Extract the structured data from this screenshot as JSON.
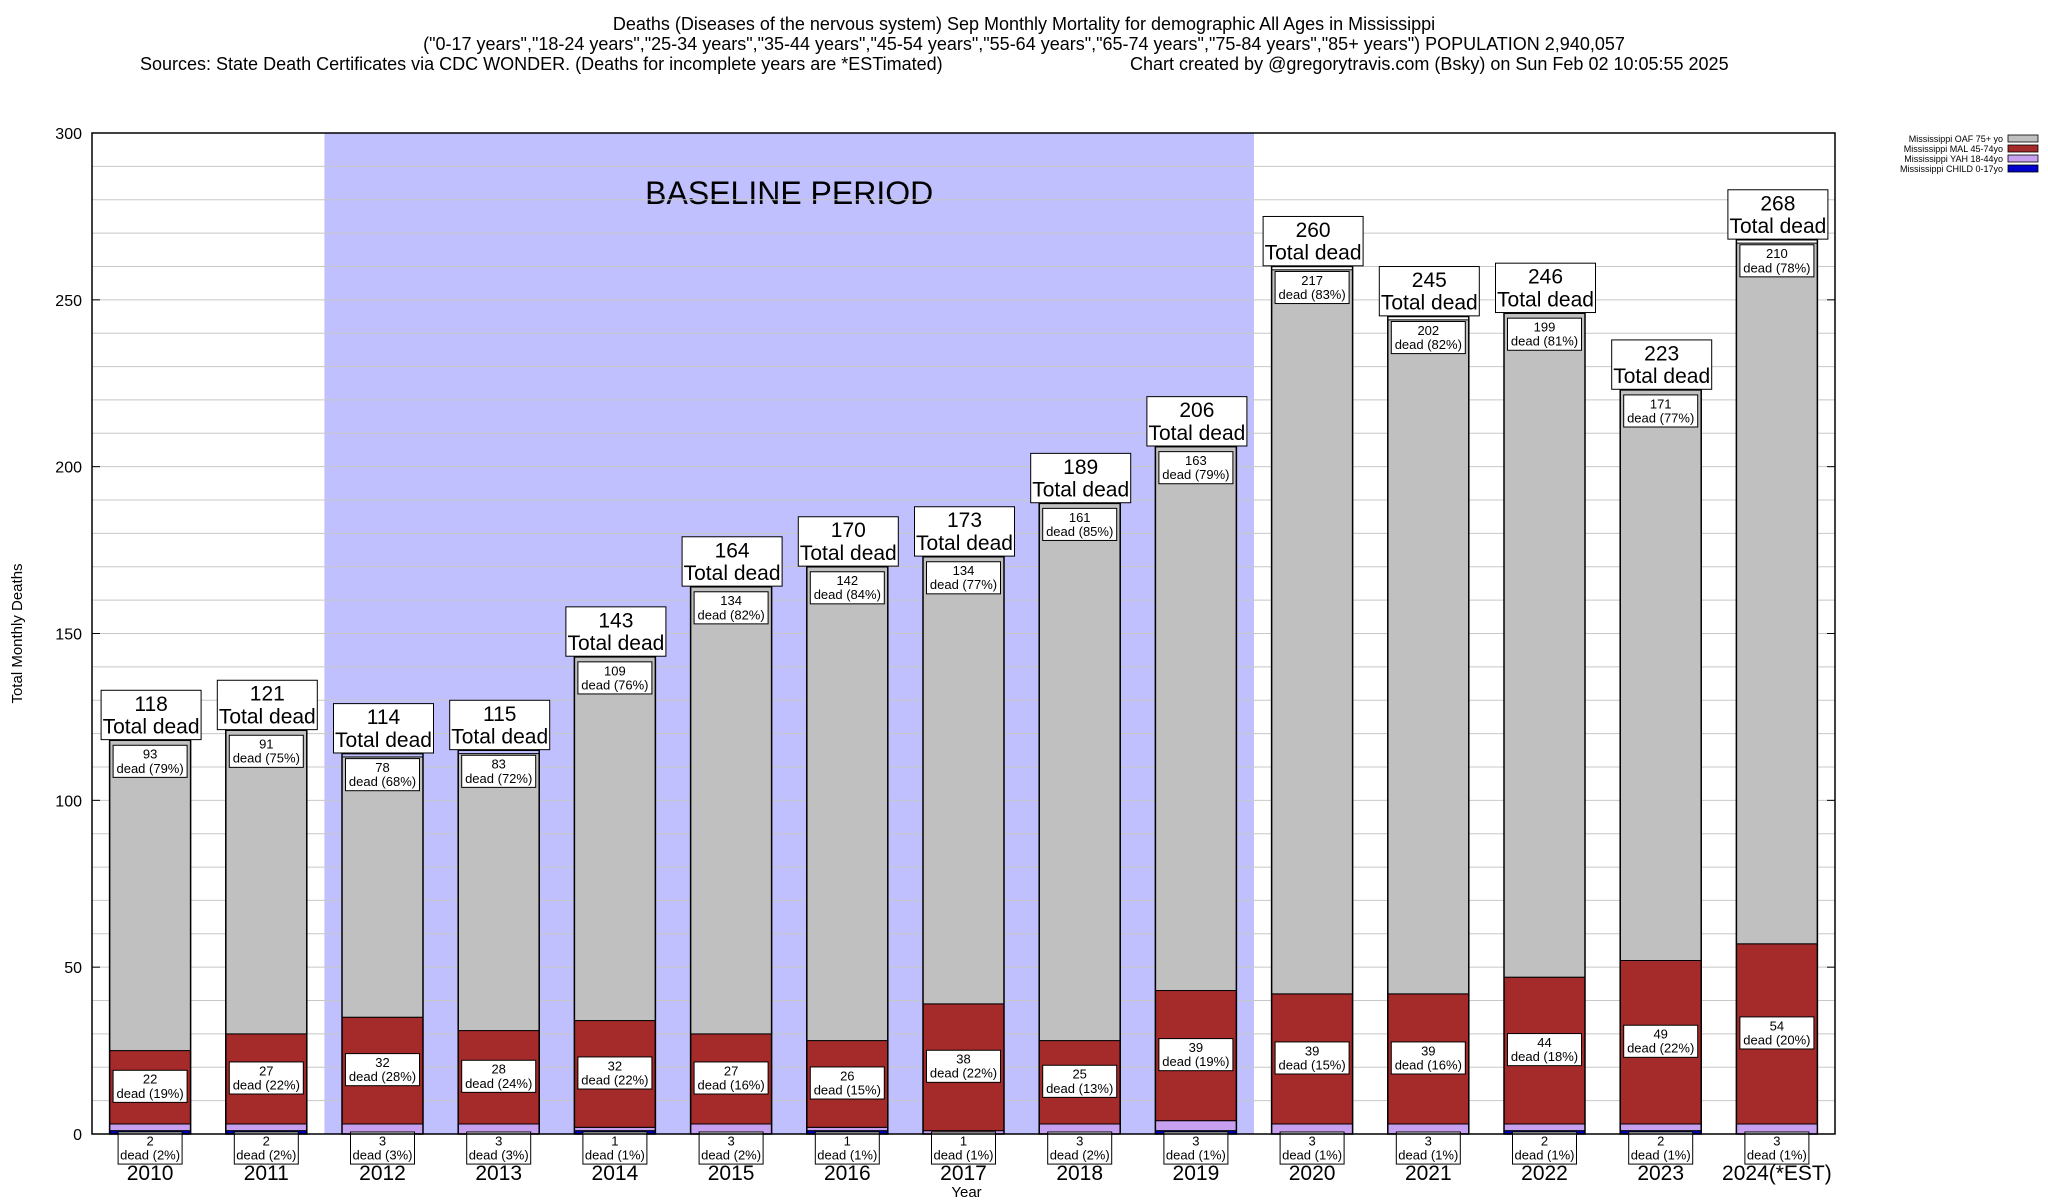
{
  "header": {
    "title": "Deaths (Diseases of the nervous system) Sep Monthly Mortality for demographic All Ages in Mississippi",
    "subtitle": "(\"0-17 years\",\"18-24 years\",\"25-34 years\",\"35-44 years\",\"45-54 years\",\"55-64 years\",\"65-74 years\",\"75-84 years\",\"85+ years\") POPULATION 2,940,057",
    "sources": "Sources: State Death Certificates via CDC WONDER. (Deaths for incomplete years are *ESTimated)",
    "credit": "Chart created by @gregorytravis.com (Bsky) on Sun Feb 02 10:05:55 2025"
  },
  "chart_data": {
    "type": "bar",
    "stacked": true,
    "xlabel": "Year",
    "ylabel": "Total Monthly Deaths",
    "ylim": [
      0,
      300
    ],
    "yticks": [
      0,
      50,
      100,
      150,
      200,
      250,
      300
    ],
    "grid": "horizontal",
    "legend_position": "top-right",
    "baseline_label": "BASELINE PERIOD",
    "baseline_range": [
      "2012",
      "2019"
    ],
    "baseline_color": "#c0c0ff",
    "total_label": "Total dead",
    "dead_word": "dead",
    "categories": [
      "2010",
      "2011",
      "2012",
      "2013",
      "2014",
      "2015",
      "2016",
      "2017",
      "2018",
      "2019",
      "2020",
      "2021",
      "2022",
      "2023",
      "2024(*EST)"
    ],
    "totals": [
      118,
      121,
      114,
      115,
      143,
      164,
      170,
      173,
      189,
      206,
      260,
      245,
      246,
      223,
      268
    ],
    "series": [
      {
        "name": "Mississippi CHILD 0-17yo",
        "color": "#0000cc",
        "values": [
          1,
          1,
          0,
          0,
          1,
          0,
          1,
          0,
          0,
          1,
          0,
          0,
          1,
          1,
          0
        ]
      },
      {
        "name": "Mississippi YAH 18-44yo",
        "color": "#c8a0f0",
        "values": [
          2,
          2,
          3,
          3,
          1,
          3,
          1,
          1,
          3,
          3,
          3,
          3,
          2,
          2,
          3
        ],
        "pct": [
          "2%",
          "2%",
          "3%",
          "3%",
          "1%",
          "2%",
          "1%",
          "1%",
          "2%",
          "1%",
          "1%",
          "1%",
          "1%",
          "1%",
          "1%"
        ]
      },
      {
        "name": "Mississippi MAL 45-74yo",
        "color": "#a52a2a",
        "values": [
          22,
          27,
          32,
          28,
          32,
          27,
          26,
          38,
          25,
          39,
          39,
          39,
          44,
          49,
          54
        ],
        "pct": [
          "19%",
          "22%",
          "28%",
          "24%",
          "22%",
          "16%",
          "15%",
          "22%",
          "13%",
          "19%",
          "15%",
          "16%",
          "18%",
          "22%",
          "20%"
        ]
      },
      {
        "name": "Mississippi OAF 75+ yo",
        "color": "#c0c0c0",
        "values": [
          93,
          91,
          78,
          83,
          109,
          134,
          142,
          134,
          161,
          163,
          217,
          202,
          199,
          171,
          210
        ],
        "pct": [
          "79%",
          "75%",
          "68%",
          "72%",
          "76%",
          "82%",
          "84%",
          "77%",
          "85%",
          "79%",
          "83%",
          "82%",
          "81%",
          "77%",
          "78%"
        ]
      }
    ]
  }
}
